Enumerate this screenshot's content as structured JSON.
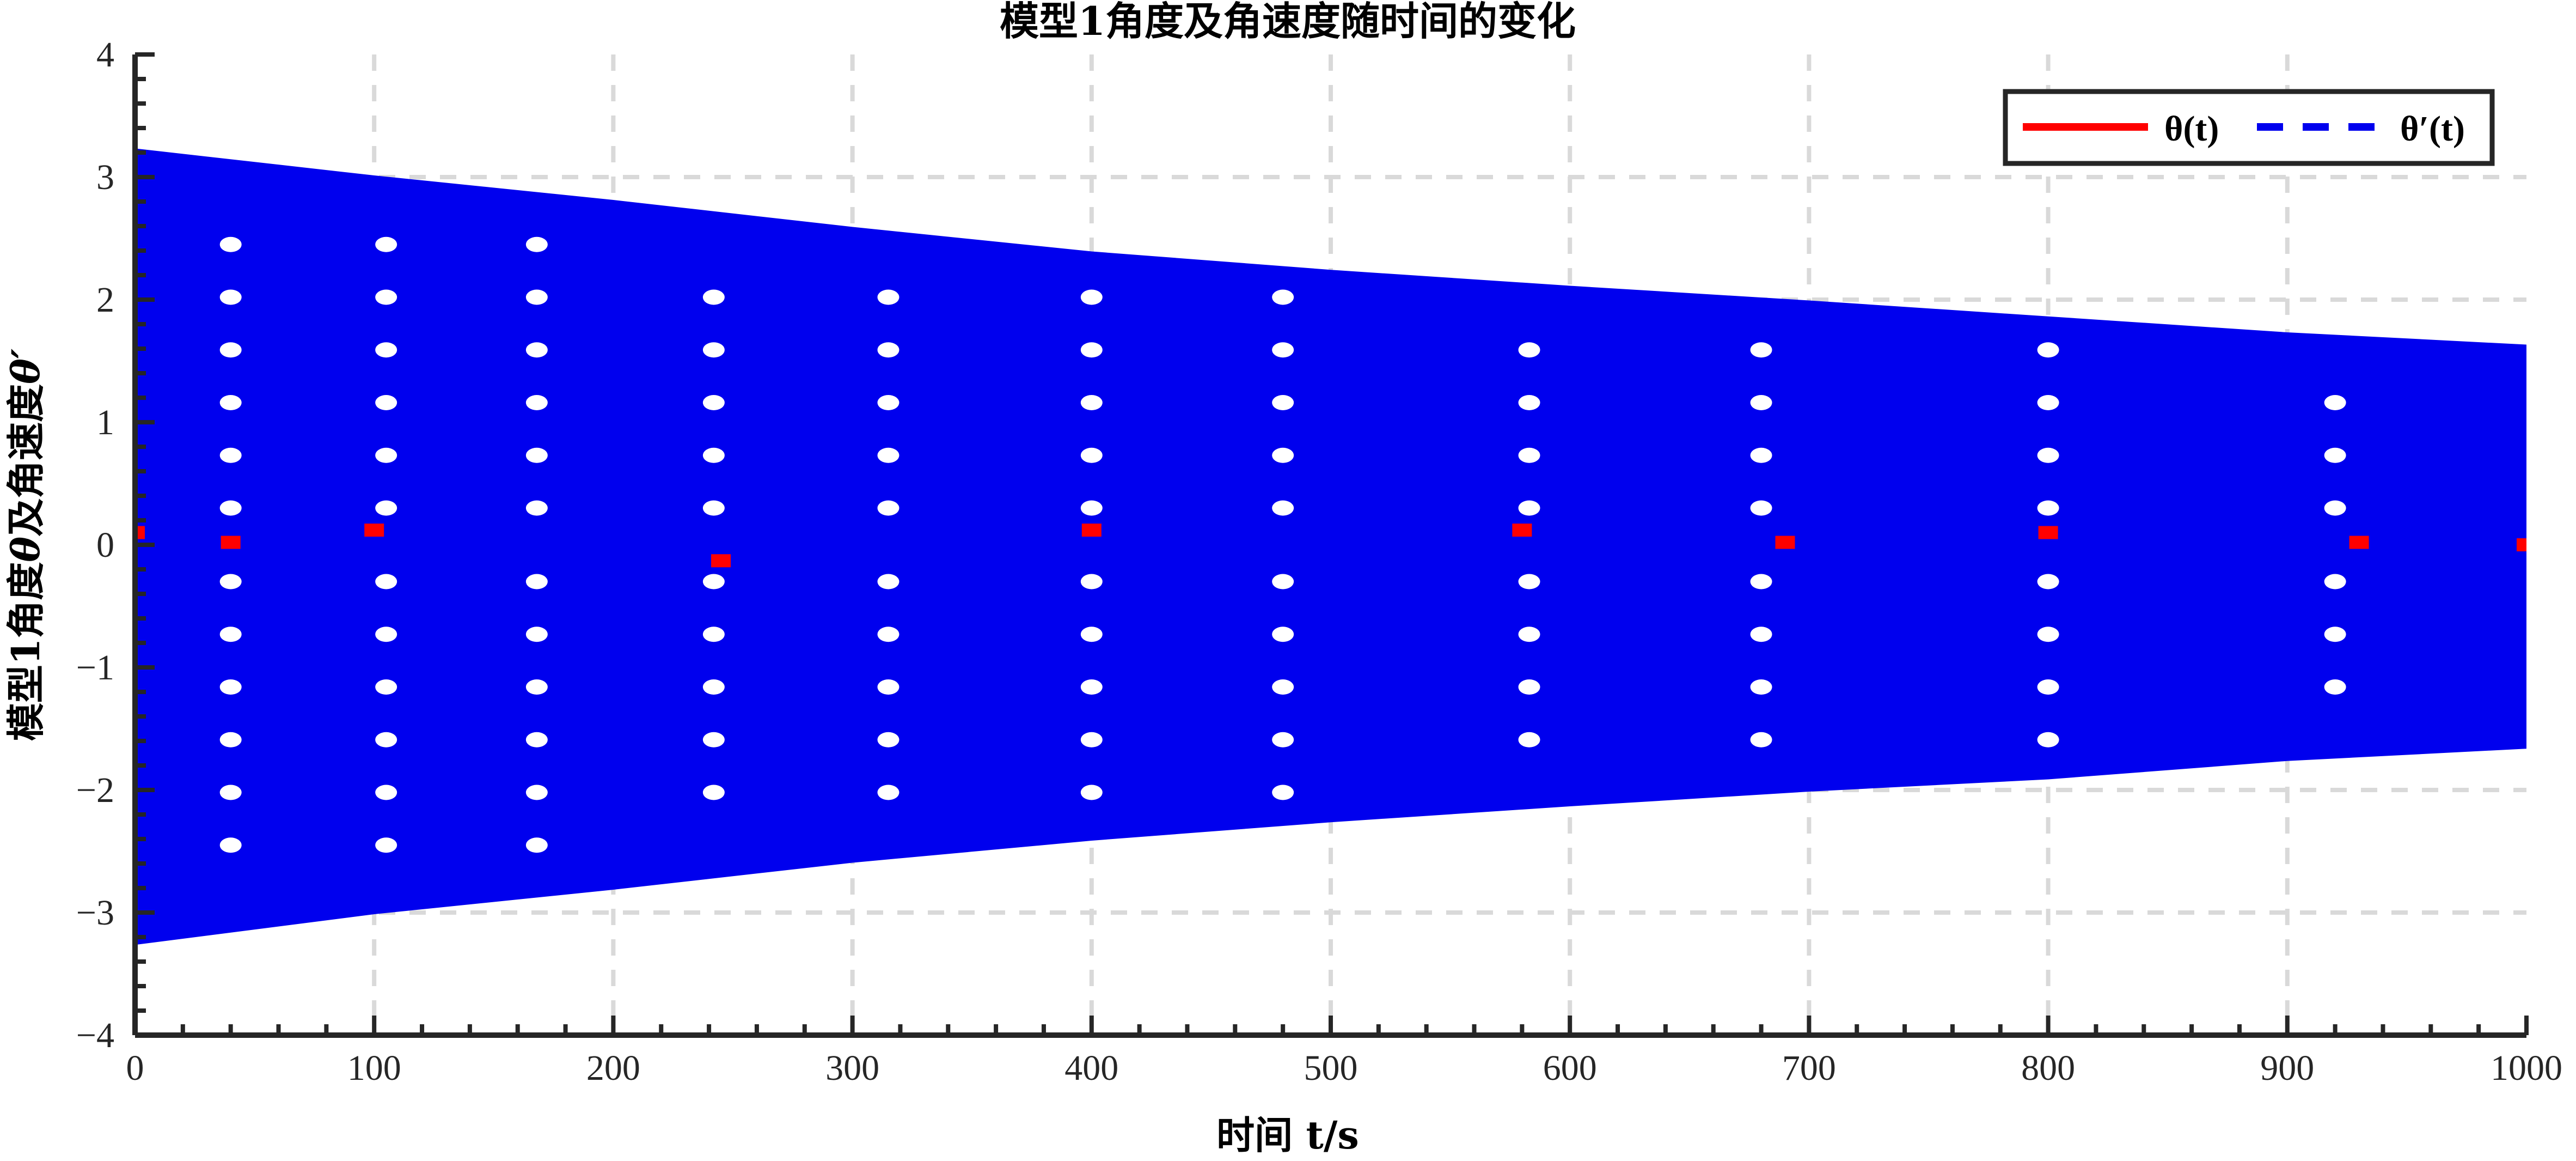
{
  "chart_data": {
    "type": "line",
    "title": "模型1角度及角速度随时间的变化",
    "xlabel": "时间 t/s",
    "ylabel_parts": {
      "prefix": "模型1角度",
      "theta_symbol": "θ",
      "middle": "及角速度",
      "theta_prime_symbol": "θ′"
    },
    "xlim": [
      0,
      1000
    ],
    "ylim": [
      -4,
      4
    ],
    "x_ticks": [
      0,
      100,
      200,
      300,
      400,
      500,
      600,
      700,
      800,
      900,
      1000
    ],
    "y_ticks": [
      -4,
      -3,
      -2,
      -1,
      0,
      1,
      2,
      3,
      4
    ],
    "x_tick_labels": [
      "0",
      "100",
      "200",
      "300",
      "400",
      "500",
      "600",
      "700",
      "800",
      "900",
      "1000"
    ],
    "y_tick_labels": [
      "−4",
      "−3",
      "−2",
      "−1",
      "0",
      "1",
      "2",
      "3",
      "4"
    ],
    "grid": true,
    "legend_position": "top-right",
    "series": [
      {
        "name": "θ(t)",
        "legend_label": "θ(t)",
        "color": "#ff0000",
        "line_style": "solid",
        "description_values": {
          "x": [
            0,
            40,
            100,
            245,
            400,
            580,
            690,
            800,
            930,
            1000
          ],
          "y": [
            0.1,
            0.02,
            0.12,
            -0.13,
            0.12,
            0.12,
            0.02,
            0.1,
            0.02,
            0.0
          ]
        }
      },
      {
        "name": "θ′(t)",
        "legend_label": "θ′(t)",
        "color": "#0000ee",
        "line_style": "dashed",
        "envelope": {
          "x": [
            0,
            100,
            200,
            300,
            400,
            500,
            600,
            700,
            800,
            900,
            1000
          ],
          "upper": [
            3.22,
            3.0,
            2.8,
            2.58,
            2.38,
            2.23,
            2.1,
            1.98,
            1.85,
            1.72,
            1.62
          ],
          "lower": [
            -3.25,
            -3.0,
            -2.8,
            -2.58,
            -2.4,
            -2.25,
            -2.12,
            -2.0,
            -1.9,
            -1.75,
            -1.65
          ]
        },
        "gap_columns_x": [
          40,
          105,
          168,
          242,
          315,
          400,
          480,
          583,
          680,
          800,
          920
        ],
        "gap_columns_y_spacing": 0.43
      }
    ]
  }
}
